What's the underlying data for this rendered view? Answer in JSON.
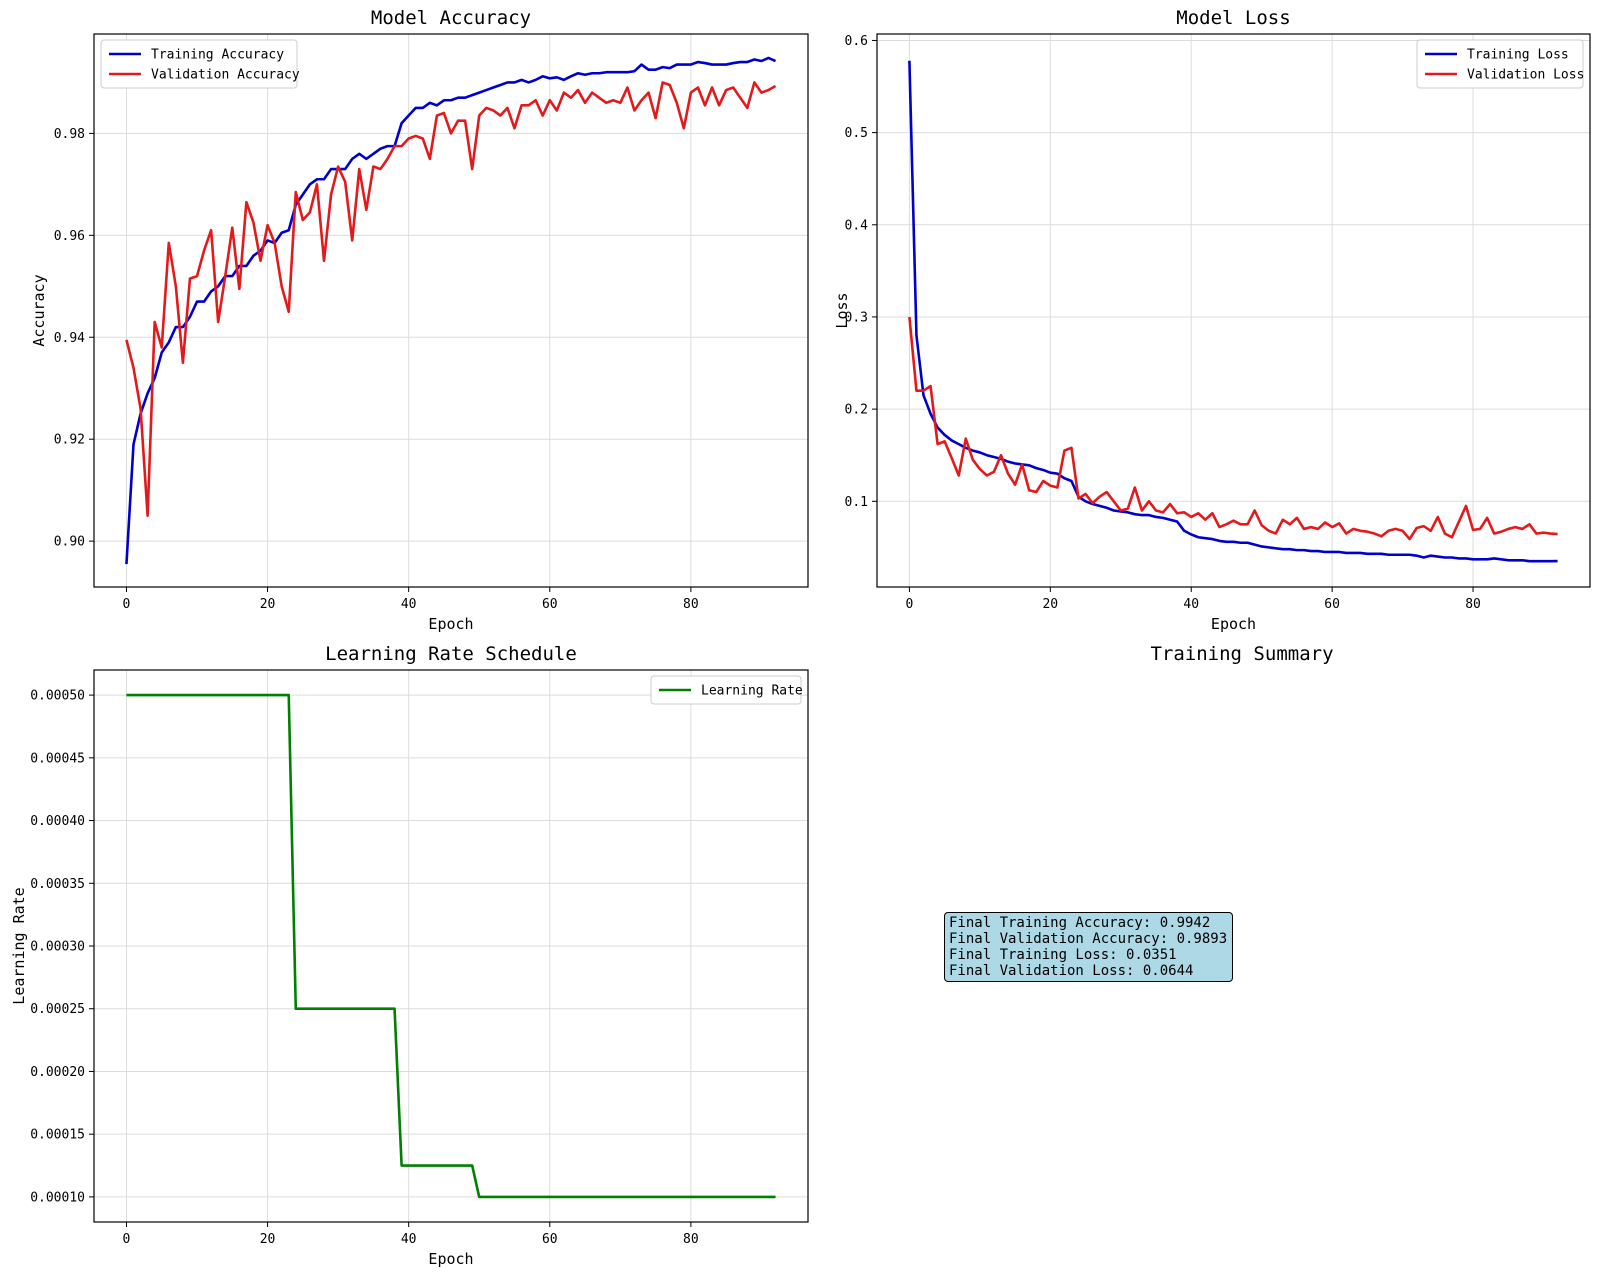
{
  "chart_data": [
    {
      "type": "line",
      "title": "Model Accuracy",
      "xlabel": "Epoch",
      "ylabel": "Accuracy",
      "xlim": [
        -4.6,
        96.6
      ],
      "ylim": [
        0.891,
        0.9995
      ],
      "xticks": [
        0,
        20,
        40,
        60,
        80
      ],
      "xtick_labels": [
        "0",
        "20",
        "40",
        "60",
        "80"
      ],
      "yticks": [
        0.9,
        0.92,
        0.94,
        0.96,
        0.98
      ],
      "ytick_labels": [
        "0.90",
        "0.92",
        "0.94",
        "0.96",
        "0.98"
      ],
      "grid": true,
      "legend_position": "upper-left",
      "series": [
        {
          "name": "Training Accuracy",
          "color": "#0000cc",
          "values": [
            0.8955,
            0.919,
            0.925,
            0.929,
            0.932,
            0.937,
            0.939,
            0.942,
            0.942,
            0.944,
            0.947,
            0.947,
            0.949,
            0.95,
            0.952,
            0.952,
            0.954,
            0.954,
            0.956,
            0.957,
            0.959,
            0.9585,
            0.9605,
            0.961,
            0.966,
            0.968,
            0.97,
            0.971,
            0.971,
            0.973,
            0.973,
            0.973,
            0.975,
            0.976,
            0.975,
            0.976,
            0.977,
            0.9775,
            0.9775,
            0.982,
            0.9835,
            0.985,
            0.985,
            0.986,
            0.9855,
            0.9865,
            0.9865,
            0.987,
            0.987,
            0.9875,
            0.988,
            0.9885,
            0.989,
            0.9895,
            0.99,
            0.99,
            0.9905,
            0.99,
            0.9905,
            0.9912,
            0.9908,
            0.991,
            0.9905,
            0.9912,
            0.9918,
            0.9915,
            0.9918,
            0.9918,
            0.992,
            0.992,
            0.992,
            0.992,
            0.9922,
            0.9935,
            0.9925,
            0.9925,
            0.993,
            0.9928,
            0.9935,
            0.9935,
            0.9935,
            0.994,
            0.9938,
            0.9935,
            0.9935,
            0.9935,
            0.9938,
            0.994,
            0.994,
            0.9945,
            0.9942,
            0.9948,
            0.9942
          ]
        },
        {
          "name": "Validation Accuracy",
          "color": "#e31a1c",
          "values": [
            0.9395,
            0.934,
            0.926,
            0.905,
            0.943,
            0.938,
            0.9585,
            0.95,
            0.935,
            0.9515,
            0.952,
            0.957,
            0.961,
            0.943,
            0.952,
            0.9615,
            0.9495,
            0.9665,
            0.9625,
            0.955,
            0.962,
            0.9585,
            0.95,
            0.945,
            0.9685,
            0.963,
            0.9645,
            0.97,
            0.955,
            0.968,
            0.9735,
            0.9705,
            0.959,
            0.973,
            0.965,
            0.9735,
            0.973,
            0.975,
            0.9775,
            0.9775,
            0.979,
            0.9795,
            0.979,
            0.975,
            0.9835,
            0.984,
            0.98,
            0.9825,
            0.9825,
            0.973,
            0.9835,
            0.985,
            0.9845,
            0.9835,
            0.985,
            0.981,
            0.9855,
            0.9855,
            0.9865,
            0.9835,
            0.9865,
            0.9845,
            0.988,
            0.987,
            0.9885,
            0.986,
            0.988,
            0.987,
            0.986,
            0.9865,
            0.986,
            0.989,
            0.9845,
            0.9865,
            0.988,
            0.983,
            0.99,
            0.9895,
            0.986,
            0.981,
            0.988,
            0.989,
            0.9855,
            0.989,
            0.9855,
            0.9885,
            0.989,
            0.987,
            0.985,
            0.99,
            0.988,
            0.9885,
            0.9893
          ]
        }
      ]
    },
    {
      "type": "line",
      "title": "Model Loss",
      "xlabel": "Epoch",
      "ylabel": "Loss",
      "xlim": [
        -4.6,
        96.6
      ],
      "ylim": [
        0.007,
        0.607
      ],
      "xticks": [
        0,
        20,
        40,
        60,
        80
      ],
      "xtick_labels": [
        "0",
        "20",
        "40",
        "60",
        "80"
      ],
      "yticks": [
        0.1,
        0.2,
        0.3,
        0.4,
        0.5,
        0.6
      ],
      "ytick_labels": [
        "0.1",
        "0.2",
        "0.3",
        "0.4",
        "0.5",
        "0.6"
      ],
      "grid": true,
      "legend_position": "upper-right",
      "series": [
        {
          "name": "Training Loss",
          "color": "#0000cc",
          "values": [
            0.578,
            0.28,
            0.215,
            0.195,
            0.18,
            0.172,
            0.166,
            0.162,
            0.158,
            0.155,
            0.153,
            0.15,
            0.148,
            0.146,
            0.143,
            0.141,
            0.14,
            0.139,
            0.136,
            0.134,
            0.131,
            0.13,
            0.125,
            0.122,
            0.105,
            0.1,
            0.097,
            0.095,
            0.093,
            0.09,
            0.089,
            0.088,
            0.086,
            0.085,
            0.085,
            0.083,
            0.082,
            0.08,
            0.078,
            0.068,
            0.064,
            0.061,
            0.06,
            0.059,
            0.057,
            0.056,
            0.056,
            0.055,
            0.055,
            0.053,
            0.051,
            0.05,
            0.049,
            0.048,
            0.048,
            0.047,
            0.047,
            0.046,
            0.046,
            0.045,
            0.045,
            0.045,
            0.044,
            0.044,
            0.044,
            0.043,
            0.043,
            0.043,
            0.042,
            0.042,
            0.042,
            0.042,
            0.041,
            0.039,
            0.041,
            0.04,
            0.039,
            0.039,
            0.038,
            0.038,
            0.037,
            0.037,
            0.037,
            0.038,
            0.037,
            0.036,
            0.036,
            0.036,
            0.035,
            0.035,
            0.035,
            0.035,
            0.0351
          ]
        },
        {
          "name": "Validation Loss",
          "color": "#e31a1c",
          "values": [
            0.3,
            0.22,
            0.22,
            0.225,
            0.162,
            0.165,
            0.147,
            0.128,
            0.168,
            0.145,
            0.135,
            0.128,
            0.132,
            0.15,
            0.13,
            0.118,
            0.14,
            0.112,
            0.11,
            0.122,
            0.117,
            0.115,
            0.155,
            0.158,
            0.103,
            0.108,
            0.098,
            0.105,
            0.11,
            0.1,
            0.09,
            0.092,
            0.115,
            0.09,
            0.1,
            0.09,
            0.088,
            0.097,
            0.087,
            0.088,
            0.083,
            0.087,
            0.08,
            0.087,
            0.072,
            0.075,
            0.079,
            0.075,
            0.075,
            0.09,
            0.074,
            0.068,
            0.065,
            0.08,
            0.075,
            0.082,
            0.07,
            0.072,
            0.07,
            0.077,
            0.072,
            0.076,
            0.065,
            0.07,
            0.068,
            0.067,
            0.065,
            0.062,
            0.068,
            0.07,
            0.068,
            0.059,
            0.071,
            0.073,
            0.068,
            0.083,
            0.065,
            0.061,
            0.078,
            0.095,
            0.069,
            0.07,
            0.082,
            0.065,
            0.067,
            0.07,
            0.072,
            0.07,
            0.075,
            0.065,
            0.066,
            0.065,
            0.0644
          ]
        }
      ]
    },
    {
      "type": "line",
      "title": "Learning Rate Schedule",
      "xlabel": "Epoch",
      "ylabel": "Learning Rate",
      "xlim": [
        -4.6,
        96.6
      ],
      "ylim": [
        8e-05,
        0.00052
      ],
      "xticks": [
        0,
        20,
        40,
        60,
        80
      ],
      "xtick_labels": [
        "0",
        "20",
        "40",
        "60",
        "80"
      ],
      "yticks": [
        0.0001,
        0.00015,
        0.0002,
        0.00025,
        0.0003,
        0.00035,
        0.0004,
        0.00045,
        0.0005
      ],
      "ytick_labels": [
        "0.00010",
        "0.00015",
        "0.00020",
        "0.00025",
        "0.00030",
        "0.00035",
        "0.00040",
        "0.00045",
        "0.00050"
      ],
      "grid": true,
      "legend_position": "upper-right",
      "series": [
        {
          "name": "Learning Rate",
          "color": "#008000",
          "x": [
            0,
            23,
            24,
            38,
            39,
            49,
            50,
            92
          ],
          "values": [
            0.0005,
            0.0005,
            0.00025,
            0.00025,
            0.000125,
            0.000125,
            0.0001,
            0.0001
          ]
        }
      ]
    }
  ],
  "summary": {
    "title": "Training Summary",
    "lines": [
      "Final Training Accuracy: 0.9942",
      "Final Validation Accuracy: 0.9893",
      "Final Training Loss: 0.0351",
      "Final Validation Loss: 0.0644"
    ]
  }
}
